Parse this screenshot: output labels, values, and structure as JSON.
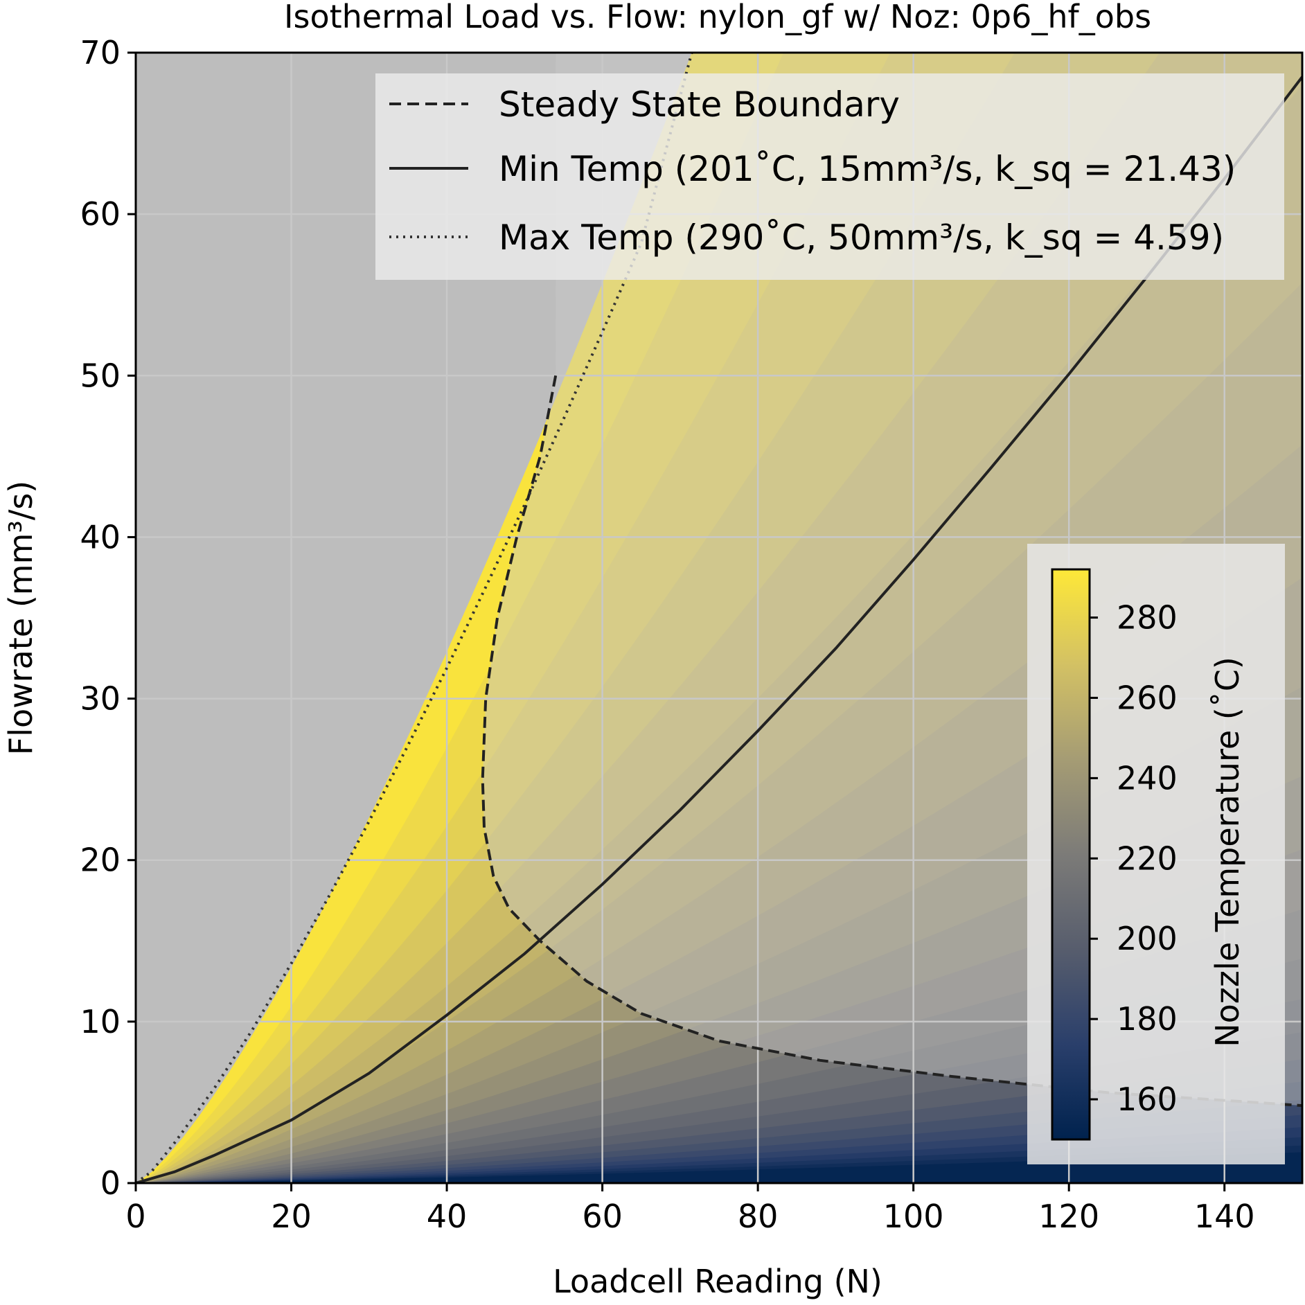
{
  "chart_data": {
    "type": "line",
    "title": "Isothermal Load vs. Flow: nylon_gf w/ Noz: 0p6_hf_obs",
    "xlabel": "Loadcell Reading (N)",
    "ylabel": "Flowrate (mm³/s)",
    "xlim": [
      0,
      150
    ],
    "ylim": [
      0,
      70
    ],
    "xticks": [
      "0",
      "20",
      "40",
      "60",
      "80",
      "100",
      "120",
      "140"
    ],
    "yticks": [
      "0",
      "10",
      "20",
      "30",
      "40",
      "50",
      "60",
      "70"
    ],
    "grid": true,
    "legend_position": "top-right",
    "series": [
      {
        "name": "Steady State Boundary",
        "style": "dashed",
        "color": "#222222",
        "x": [
          54,
          52,
          49,
          46.5,
          45,
          44.6,
          44.8,
          46,
          48,
          52,
          58,
          65,
          75,
          88,
          105,
          125,
          150
        ],
        "y": [
          50,
          45,
          40,
          35,
          30,
          25,
          22,
          19,
          17,
          15,
          12.5,
          10.5,
          8.8,
          7.6,
          6.6,
          5.6,
          4.8
        ]
      },
      {
        "name": "Min Temp (201˚C, 15mm³/s, k_sq = 21.43)",
        "style": "solid",
        "color": "#222222",
        "x": [
          0,
          5,
          10,
          20,
          30,
          40,
          50,
          60,
          70,
          80,
          90,
          100,
          110,
          120,
          130,
          140,
          150
        ],
        "y": [
          0,
          0.7,
          1.7,
          3.9,
          6.8,
          10.4,
          14.2,
          18.5,
          23.1,
          28.0,
          33.1,
          38.6,
          44.3,
          50.1,
          56.1,
          62.2,
          68.5
        ]
      },
      {
        "name": "Max Temp (290˚C, 50mm³/s, k_sq = 4.59)",
        "style": "dotted",
        "color": "#333333",
        "x": [
          0,
          2,
          5,
          10,
          15,
          20,
          25,
          30,
          35,
          40,
          45,
          50,
          55,
          60,
          65,
          71.5
        ],
        "y": [
          0,
          0.7,
          2.5,
          5.8,
          9.5,
          13.6,
          17.9,
          22.4,
          27.1,
          31.9,
          36.9,
          42.0,
          47.3,
          52.7,
          58.2,
          70
        ]
      }
    ],
    "colorbar": {
      "label": "Nozzle Temperature (˚C)",
      "range": [
        150,
        292
      ],
      "ticks": [
        "160",
        "180",
        "200",
        "220",
        "240",
        "260",
        "280"
      ],
      "colormap": [
        "#00224e",
        "#2a3f6b",
        "#575d6d",
        "#7c7b78",
        "#a59c74",
        "#d3c164",
        "#fee838"
      ],
      "position": "lower-right"
    }
  },
  "legend": {
    "items": [
      {
        "style": "dashed",
        "label_main": "Steady State Boundary"
      },
      {
        "style": "solid",
        "label_main": "Min Temp (201˚C, 15mm³/s, k_sq = 21.43)"
      },
      {
        "style": "dotted",
        "label_main": "Max Temp (290˚C, 50mm³/s, k_sq = 4.59)"
      }
    ]
  }
}
